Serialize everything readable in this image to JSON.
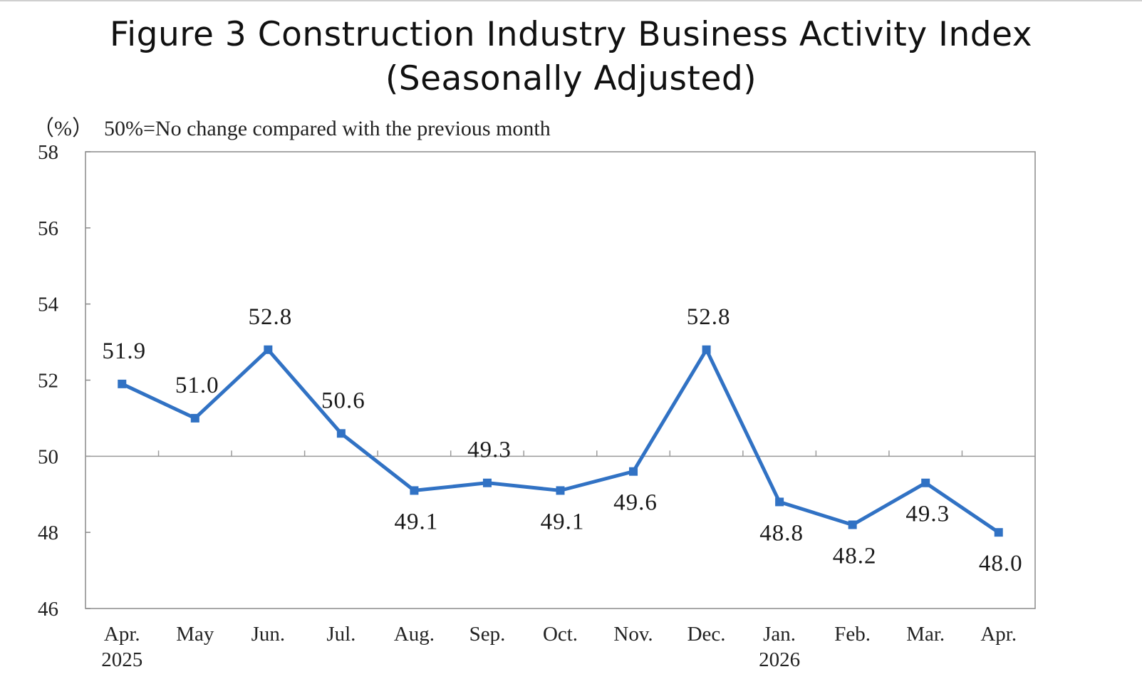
{
  "title_line1": "Figure 3  Construction Industry Business Activity Index",
  "title_line2": "(Seasonally Adjusted)",
  "unit_note": "（%）  50%=No change compared with the previous month",
  "chart_data": {
    "type": "line",
    "title": "Figure 3  Construction Industry Business Activity Index (Seasonally Adjusted)",
    "ylabel": "(%)",
    "xlabel": "",
    "ylim": [
      46,
      58
    ],
    "yticks": [
      46,
      48,
      50,
      52,
      54,
      56,
      58
    ],
    "reference_line": 50,
    "categories": [
      "Apr.",
      "May",
      "Jun.",
      "Jul.",
      "Aug.",
      "Sep.",
      "Oct.",
      "Nov.",
      "Dec.",
      "Jan.",
      "Feb.",
      "Mar.",
      "Apr."
    ],
    "category_sublabels": [
      "2025",
      "",
      "",
      "",
      "",
      "",
      "",
      "",
      "",
      "2026",
      "",
      "",
      ""
    ],
    "series": [
      {
        "name": "Construction Industry Business Activity Index",
        "values": [
          51.9,
          51.0,
          52.8,
          50.6,
          49.1,
          49.3,
          49.1,
          49.6,
          52.8,
          48.8,
          48.2,
          49.3,
          48.0
        ],
        "labels": [
          "51.9",
          "51.0",
          "52.8",
          "50.6",
          "49.1",
          "49.3",
          "49.1",
          "49.6",
          "52.8",
          "48.8",
          "48.2",
          "49.3",
          "48.0"
        ],
        "label_positions": [
          "above",
          "above",
          "above",
          "above",
          "below",
          "above",
          "below",
          "below",
          "above",
          "below",
          "below",
          "below",
          "below"
        ],
        "color": "#3172c4"
      }
    ],
    "grid": false,
    "legend": "none"
  }
}
